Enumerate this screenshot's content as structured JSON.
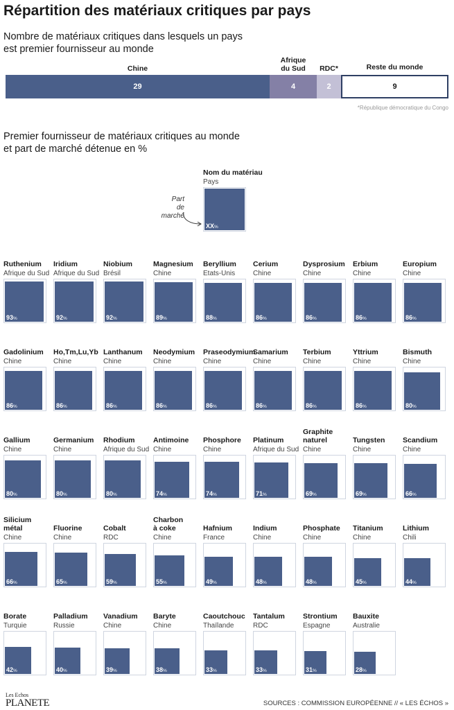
{
  "title": "Répartition des matériaux critiques par pays",
  "section1": {
    "subtitle_line1": "Nombre de matériaux critiques dans lesquels un pays",
    "subtitle_line2": "est premier fournisseur au monde"
  },
  "section2": {
    "subtitle_line1": "Premier fournisseur de matériaux critiques au monde",
    "subtitle_line2": "et part de marché détenue en %"
  },
  "colors": {
    "chine": "#4a5f8a",
    "afrique_du_sud": "#8480a6",
    "rdc": "#c3c0d6",
    "reste": "#ffffff",
    "reste_border": "#2e3f63"
  },
  "chart_data": [
    {
      "type": "bar",
      "orientation": "horizontal-stacked",
      "categories": [
        "Chine",
        "Afrique\ndu Sud",
        "RDC*",
        "Reste du monde"
      ],
      "values": [
        29,
        4,
        2,
        9
      ],
      "footnote": "*République démocratique du Congo"
    },
    {
      "type": "table",
      "legend": {
        "name": "Nom du matériau",
        "country": "Pays",
        "value": "XX",
        "unit": "%",
        "pointer": "Part\nde marché"
      },
      "unit": "%",
      "materials": [
        {
          "name": "Ruthenium",
          "country": "Afrique du Sud",
          "value": 93
        },
        {
          "name": "Iridium",
          "country": "Afrique du Sud",
          "value": 92
        },
        {
          "name": "Niobium",
          "country": "Brésil",
          "value": 92
        },
        {
          "name": "Magnesium",
          "country": "Chine",
          "value": 89
        },
        {
          "name": "Beryllium",
          "country": "Etats-Unis",
          "value": 88
        },
        {
          "name": "Cerium",
          "country": "Chine",
          "value": 86
        },
        {
          "name": "Dysprosium",
          "country": "Chine",
          "value": 86
        },
        {
          "name": "Erbium",
          "country": "Chine",
          "value": 86
        },
        {
          "name": "Europium",
          "country": "Chine",
          "value": 86
        },
        {
          "name": "Gadolinium",
          "country": "Chine",
          "value": 86
        },
        {
          "name": "Ho,Tm,Lu,Yb",
          "country": "Chine",
          "value": 86
        },
        {
          "name": "Lanthanum",
          "country": "Chine",
          "value": 86
        },
        {
          "name": "Neodymium",
          "country": "Chine",
          "value": 86
        },
        {
          "name": "Praseodymium",
          "country": "Chine",
          "value": 86
        },
        {
          "name": "Samarium",
          "country": "Chine",
          "value": 86
        },
        {
          "name": "Terbium",
          "country": "Chine",
          "value": 86
        },
        {
          "name": "Yttrium",
          "country": "Chine",
          "value": 86
        },
        {
          "name": "Bismuth",
          "country": "Chine",
          "value": 80
        },
        {
          "name": "Gallium",
          "country": "Chine",
          "value": 80
        },
        {
          "name": "Germanium",
          "country": "Chine",
          "value": 80
        },
        {
          "name": "Rhodium",
          "country": "Afrique du Sud",
          "value": 80
        },
        {
          "name": "Antimoine",
          "country": "Chine",
          "value": 74
        },
        {
          "name": "Phosphore",
          "country": "Chine",
          "value": 74
        },
        {
          "name": "Platinum",
          "country": "Afrique du Sud",
          "value": 71
        },
        {
          "name": "Graphite\nnaturel",
          "country": "Chine",
          "value": 69
        },
        {
          "name": "Tungsten",
          "country": "Chine",
          "value": 69
        },
        {
          "name": "Scandium",
          "country": "Chine",
          "value": 66
        },
        {
          "name": "Silicium\nmétal",
          "country": "Chine",
          "value": 66
        },
        {
          "name": "Fluorine",
          "country": "Chine",
          "value": 65
        },
        {
          "name": "Cobalt",
          "country": "RDC",
          "value": 59
        },
        {
          "name": "Charbon\nà coke",
          "country": "Chine",
          "value": 55
        },
        {
          "name": "Hafnium",
          "country": "France",
          "value": 49
        },
        {
          "name": "Indium",
          "country": "Chine",
          "value": 48
        },
        {
          "name": "Phosphate",
          "country": "Chine",
          "value": 48
        },
        {
          "name": "Titanium",
          "country": "Chine",
          "value": 45
        },
        {
          "name": "Lithium",
          "country": "Chili",
          "value": 44
        },
        {
          "name": "Borate",
          "country": "Turquie",
          "value": 42
        },
        {
          "name": "Palladium",
          "country": "Russie",
          "value": 40
        },
        {
          "name": "Vanadium",
          "country": "Chine",
          "value": 39
        },
        {
          "name": "Baryte",
          "country": "Chine",
          "value": 38
        },
        {
          "name": "Caoutchouc",
          "country": "Thaïlande",
          "value": 33
        },
        {
          "name": "Tantalum",
          "country": "RDC",
          "value": 33
        },
        {
          "name": "Strontium",
          "country": "Espagne",
          "value": 31
        },
        {
          "name": "Bauxite",
          "country": "Australie",
          "value": 28
        }
      ]
    }
  ],
  "footer": {
    "logo_top": "Les Echos",
    "logo_bottom": "PLANETE",
    "sources": "SOURCES : COMMISSION EUROPÉENNE // « LES ÉCHOS »"
  }
}
